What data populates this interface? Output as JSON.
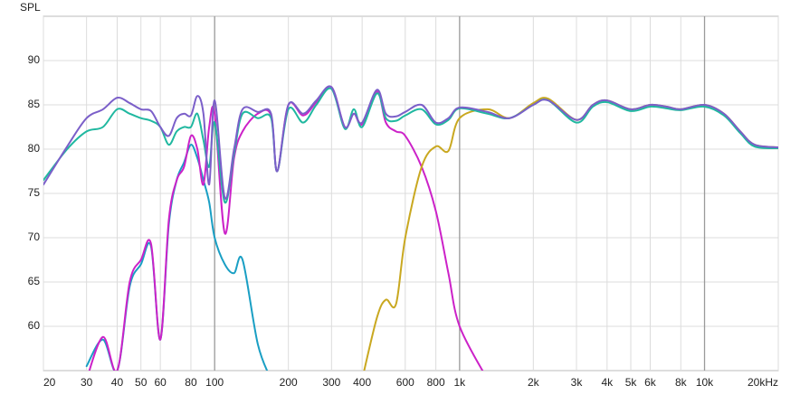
{
  "chart_data": {
    "type": "line",
    "y_label": "SPL",
    "log_x": true,
    "grid": true,
    "xlim": [
      20,
      20000
    ],
    "ylim": [
      55,
      95
    ],
    "xticks": [
      20,
      30,
      40,
      50,
      60,
      80,
      100,
      200,
      300,
      400,
      600,
      800,
      {
        "value": 1000,
        "label": "1k"
      },
      {
        "value": 2000,
        "label": "2k"
      },
      {
        "value": 3000,
        "label": "3k"
      },
      {
        "value": 4000,
        "label": "4k"
      },
      {
        "value": 5000,
        "label": "5k"
      },
      {
        "value": 6000,
        "label": "6k"
      },
      {
        "value": 8000,
        "label": "8k"
      },
      {
        "value": 10000,
        "label": "10k"
      },
      {
        "value": 20000,
        "label": "20kHz"
      }
    ],
    "yticks": [
      60,
      65,
      70,
      75,
      80,
      85,
      90
    ],
    "x": [
      20,
      25,
      30,
      35,
      40,
      45,
      50,
      55,
      60,
      65,
      70,
      75,
      80,
      85,
      90,
      95,
      100,
      110,
      120,
      130,
      150,
      170,
      180,
      200,
      230,
      260,
      300,
      340,
      370,
      400,
      460,
      500,
      550,
      600,
      700,
      800,
      900,
      1000,
      1300,
      1600,
      2000,
      2300,
      3000,
      3500,
      4000,
      5000,
      6000,
      7000,
      8000,
      10000,
      12000,
      14000,
      16000,
      20000
    ],
    "series": [
      {
        "color": "#1a9fc4",
        "values": [
          null,
          null,
          55.5,
          58.5,
          55,
          64.5,
          67,
          69,
          58.5,
          71.5,
          76.5,
          78.5,
          80.5,
          79,
          76.5,
          74,
          70,
          67,
          66,
          67.5,
          58,
          54,
          null,
          null,
          null,
          null,
          null,
          null,
          null,
          null,
          null,
          null,
          null,
          null,
          null,
          null,
          null,
          null,
          null,
          null,
          null,
          null,
          null,
          null,
          null,
          null,
          null,
          null,
          null,
          null,
          null,
          null,
          null,
          null
        ]
      },
      {
        "color": "#cc22c8",
        "values": [
          null,
          null,
          54,
          58.8,
          55,
          65,
          67.5,
          69.3,
          58.5,
          72,
          76.5,
          78,
          81.5,
          80,
          76,
          82.5,
          84,
          70.5,
          79,
          82,
          84,
          83.8,
          77.5,
          85,
          83.8,
          85.3,
          87,
          82.5,
          84,
          82.8,
          86.5,
          83,
          82,
          81.5,
          78,
          73,
          66,
          60,
          54,
          null,
          null,
          null,
          null,
          null,
          null,
          null,
          null,
          null,
          null,
          null,
          null,
          null,
          null,
          null
        ]
      },
      {
        "color": "#c9a820",
        "values": [
          null,
          null,
          null,
          null,
          null,
          null,
          null,
          null,
          null,
          null,
          null,
          null,
          null,
          null,
          null,
          null,
          null,
          null,
          null,
          null,
          null,
          null,
          null,
          null,
          null,
          null,
          null,
          null,
          null,
          54,
          61,
          63,
          62.5,
          70,
          78,
          80.3,
          79.8,
          83.5,
          84.5,
          83.5,
          85.2,
          85.7,
          83.3,
          85,
          85.5,
          84.5,
          85,
          84.8,
          84.5,
          85,
          84,
          82,
          80.5,
          80.2
        ]
      },
      {
        "color": "#20b8a0",
        "values": [
          76.5,
          80,
          82,
          82.5,
          84.5,
          84,
          83.5,
          83.2,
          82.5,
          80.5,
          82,
          82.5,
          82.5,
          84,
          81,
          78,
          83,
          74,
          79.5,
          84,
          83.5,
          83.5,
          77.5,
          84.5,
          83,
          85,
          86.8,
          82.3,
          84.5,
          82.5,
          86.3,
          83.5,
          83.2,
          83.8,
          84.5,
          82.8,
          83.3,
          84.6,
          84,
          83.5,
          85,
          85.5,
          83,
          84.8,
          85.3,
          84.3,
          84.8,
          84.6,
          84.4,
          84.8,
          83.8,
          81.8,
          80.3,
          80.1
        ]
      },
      {
        "color": "#7b5fc9",
        "values": [
          76,
          80.3,
          83.5,
          84.5,
          85.8,
          85.2,
          84.5,
          84.3,
          82.5,
          81.5,
          83.5,
          84,
          83.8,
          86,
          84,
          76,
          85.5,
          74.5,
          80,
          84.5,
          84.2,
          84,
          77.5,
          85,
          84,
          85.5,
          87,
          82.5,
          84,
          83,
          86.7,
          84,
          83.7,
          84.2,
          85,
          83,
          83.5,
          84.7,
          84.2,
          83.5,
          85,
          85.5,
          83.3,
          85,
          85.5,
          84.5,
          85,
          84.8,
          84.5,
          85,
          84,
          82,
          80.5,
          80.2
        ]
      }
    ]
  }
}
